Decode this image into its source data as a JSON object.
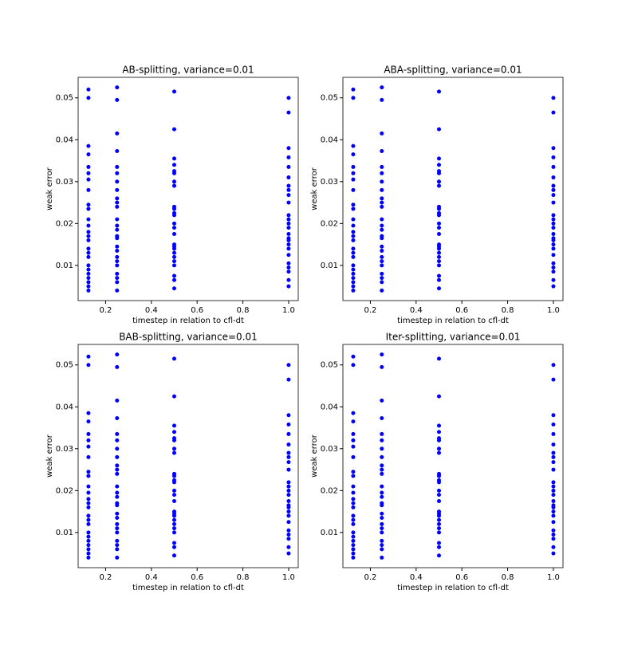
{
  "chart_data": [
    {
      "type": "scatter",
      "title": "AB-splitting, variance=0.01",
      "xlabel": "timestep in relation to cfl-dt",
      "ylabel": "weak error",
      "color": "#0000ff",
      "x": [
        0.125,
        0.125,
        0.125,
        0.125,
        0.125,
        0.125,
        0.125,
        0.125,
        0.125,
        0.125,
        0.125,
        0.125,
        0.125,
        0.125,
        0.125,
        0.125,
        0.125,
        0.125,
        0.125,
        0.125,
        0.125,
        0.125,
        0.125,
        0.125,
        0.125,
        0.25,
        0.25,
        0.25,
        0.25,
        0.25,
        0.25,
        0.25,
        0.25,
        0.25,
        0.25,
        0.25,
        0.25,
        0.25,
        0.25,
        0.25,
        0.25,
        0.25,
        0.25,
        0.25,
        0.25,
        0.25,
        0.25,
        0.25,
        0.25,
        0.25,
        0.5,
        0.5,
        0.5,
        0.5,
        0.5,
        0.5,
        0.5,
        0.5,
        0.5,
        0.5,
        0.5,
        0.5,
        0.5,
        0.5,
        0.5,
        0.5,
        0.5,
        0.5,
        0.5,
        0.5,
        0.5,
        0.5,
        0.5,
        0.5,
        0.5,
        1,
        1,
        1,
        1,
        1,
        1,
        1,
        1,
        1,
        1,
        1,
        1,
        1,
        1,
        1,
        1,
        1,
        1,
        1,
        1,
        1,
        1,
        1,
        1,
        1
      ],
      "y": [
        0.052,
        0.05,
        0.0385,
        0.0365,
        0.0335,
        0.032,
        0.0305,
        0.028,
        0.0245,
        0.0235,
        0.021,
        0.0195,
        0.018,
        0.017,
        0.016,
        0.014,
        0.013,
        0.012,
        0.01,
        0.009,
        0.008,
        0.007,
        0.006,
        0.005,
        0.004,
        0.0525,
        0.0495,
        0.0415,
        0.0373,
        0.0335,
        0.032,
        0.03,
        0.028,
        0.026,
        0.025,
        0.024,
        0.021,
        0.0195,
        0.0185,
        0.017,
        0.0165,
        0.0145,
        0.0135,
        0.012,
        0.011,
        0.01,
        0.008,
        0.007,
        0.006,
        0.004,
        0.0515,
        0.0425,
        0.0355,
        0.034,
        0.0325,
        0.032,
        0.03,
        0.029,
        0.024,
        0.0235,
        0.0225,
        0.022,
        0.02,
        0.019,
        0.0175,
        0.015,
        0.0145,
        0.014,
        0.013,
        0.012,
        0.011,
        0.01,
        0.0075,
        0.0065,
        0.0045,
        0.05,
        0.0465,
        0.038,
        0.0358,
        0.0335,
        0.031,
        0.029,
        0.028,
        0.0268,
        0.025,
        0.022,
        0.021,
        0.02,
        0.019,
        0.0175,
        0.0165,
        0.016,
        0.015,
        0.014,
        0.0125,
        0.0105,
        0.0095,
        0.0085,
        0.0065,
        0.005
      ],
      "xlim": [
        0.08,
        1.042
      ],
      "ylim": [
        0.0016,
        0.0549
      ],
      "xticks": [
        0.2,
        0.4,
        0.6,
        0.8,
        {
          "value": 1,
          "label": "1.0"
        }
      ],
      "yticks": [
        0.01,
        0.02,
        0.03,
        0.04,
        0.05
      ]
    },
    {
      "type": "scatter",
      "title": "ABA-splitting, variance=0.01",
      "xlabel": "timestep in relation to cfl-dt",
      "ylabel": "weak error",
      "color": "#0000ff",
      "x": [
        0.125,
        0.125,
        0.125,
        0.125,
        0.125,
        0.125,
        0.125,
        0.125,
        0.125,
        0.125,
        0.125,
        0.125,
        0.125,
        0.125,
        0.125,
        0.125,
        0.125,
        0.125,
        0.125,
        0.125,
        0.125,
        0.125,
        0.125,
        0.125,
        0.125,
        0.25,
        0.25,
        0.25,
        0.25,
        0.25,
        0.25,
        0.25,
        0.25,
        0.25,
        0.25,
        0.25,
        0.25,
        0.25,
        0.25,
        0.25,
        0.25,
        0.25,
        0.25,
        0.25,
        0.25,
        0.25,
        0.25,
        0.25,
        0.25,
        0.25,
        0.5,
        0.5,
        0.5,
        0.5,
        0.5,
        0.5,
        0.5,
        0.5,
        0.5,
        0.5,
        0.5,
        0.5,
        0.5,
        0.5,
        0.5,
        0.5,
        0.5,
        0.5,
        0.5,
        0.5,
        0.5,
        0.5,
        0.5,
        0.5,
        0.5,
        1,
        1,
        1,
        1,
        1,
        1,
        1,
        1,
        1,
        1,
        1,
        1,
        1,
        1,
        1,
        1,
        1,
        1,
        1,
        1,
        1,
        1,
        1,
        1,
        1
      ],
      "y": [
        0.052,
        0.05,
        0.0385,
        0.0365,
        0.0335,
        0.032,
        0.0305,
        0.028,
        0.0245,
        0.0235,
        0.021,
        0.0195,
        0.018,
        0.017,
        0.016,
        0.014,
        0.013,
        0.012,
        0.01,
        0.009,
        0.008,
        0.007,
        0.006,
        0.005,
        0.004,
        0.0525,
        0.0495,
        0.0415,
        0.0373,
        0.0335,
        0.032,
        0.03,
        0.028,
        0.026,
        0.025,
        0.024,
        0.021,
        0.0195,
        0.0185,
        0.017,
        0.0165,
        0.0145,
        0.0135,
        0.012,
        0.011,
        0.01,
        0.008,
        0.007,
        0.006,
        0.004,
        0.0515,
        0.0425,
        0.0355,
        0.034,
        0.0325,
        0.032,
        0.03,
        0.029,
        0.024,
        0.0235,
        0.0225,
        0.022,
        0.02,
        0.019,
        0.0175,
        0.015,
        0.0145,
        0.014,
        0.013,
        0.012,
        0.011,
        0.01,
        0.0075,
        0.0065,
        0.0045,
        0.05,
        0.0465,
        0.038,
        0.0358,
        0.0335,
        0.031,
        0.029,
        0.028,
        0.0268,
        0.025,
        0.022,
        0.021,
        0.02,
        0.019,
        0.0175,
        0.0165,
        0.016,
        0.015,
        0.014,
        0.0125,
        0.0105,
        0.0095,
        0.0085,
        0.0065,
        0.005
      ],
      "xlim": [
        0.08,
        1.042
      ],
      "ylim": [
        0.0016,
        0.0549
      ],
      "xticks": [
        0.2,
        0.4,
        0.6,
        0.8,
        {
          "value": 1,
          "label": "1.0"
        }
      ],
      "yticks": [
        0.01,
        0.02,
        0.03,
        0.04,
        0.05
      ]
    },
    {
      "type": "scatter",
      "title": "BAB-splitting, variance=0.01",
      "xlabel": "timestep in relation to cfl-dt",
      "ylabel": "weak error",
      "color": "#0000ff",
      "x": [
        0.125,
        0.125,
        0.125,
        0.125,
        0.125,
        0.125,
        0.125,
        0.125,
        0.125,
        0.125,
        0.125,
        0.125,
        0.125,
        0.125,
        0.125,
        0.125,
        0.125,
        0.125,
        0.125,
        0.125,
        0.125,
        0.125,
        0.125,
        0.125,
        0.125,
        0.25,
        0.25,
        0.25,
        0.25,
        0.25,
        0.25,
        0.25,
        0.25,
        0.25,
        0.25,
        0.25,
        0.25,
        0.25,
        0.25,
        0.25,
        0.25,
        0.25,
        0.25,
        0.25,
        0.25,
        0.25,
        0.25,
        0.25,
        0.25,
        0.25,
        0.5,
        0.5,
        0.5,
        0.5,
        0.5,
        0.5,
        0.5,
        0.5,
        0.5,
        0.5,
        0.5,
        0.5,
        0.5,
        0.5,
        0.5,
        0.5,
        0.5,
        0.5,
        0.5,
        0.5,
        0.5,
        0.5,
        0.5,
        0.5,
        0.5,
        1,
        1,
        1,
        1,
        1,
        1,
        1,
        1,
        1,
        1,
        1,
        1,
        1,
        1,
        1,
        1,
        1,
        1,
        1,
        1,
        1,
        1,
        1,
        1,
        1
      ],
      "y": [
        0.052,
        0.05,
        0.0385,
        0.0365,
        0.0335,
        0.032,
        0.0305,
        0.028,
        0.0245,
        0.0235,
        0.021,
        0.0195,
        0.018,
        0.017,
        0.016,
        0.014,
        0.013,
        0.012,
        0.01,
        0.009,
        0.008,
        0.007,
        0.006,
        0.005,
        0.004,
        0.0525,
        0.0495,
        0.0415,
        0.0373,
        0.0335,
        0.032,
        0.03,
        0.028,
        0.026,
        0.025,
        0.024,
        0.021,
        0.0195,
        0.0185,
        0.017,
        0.0165,
        0.0145,
        0.0135,
        0.012,
        0.011,
        0.01,
        0.008,
        0.007,
        0.006,
        0.004,
        0.0515,
        0.0425,
        0.0355,
        0.034,
        0.0325,
        0.032,
        0.03,
        0.029,
        0.024,
        0.0235,
        0.0225,
        0.022,
        0.02,
        0.019,
        0.0175,
        0.015,
        0.0145,
        0.014,
        0.013,
        0.012,
        0.011,
        0.01,
        0.0075,
        0.0065,
        0.0045,
        0.05,
        0.0465,
        0.038,
        0.0358,
        0.0335,
        0.031,
        0.029,
        0.028,
        0.0268,
        0.025,
        0.022,
        0.021,
        0.02,
        0.019,
        0.0175,
        0.0165,
        0.016,
        0.015,
        0.014,
        0.0125,
        0.0105,
        0.0095,
        0.0085,
        0.0065,
        0.005
      ],
      "xlim": [
        0.08,
        1.042
      ],
      "ylim": [
        0.0016,
        0.0549
      ],
      "xticks": [
        0.2,
        0.4,
        0.6,
        0.8,
        {
          "value": 1,
          "label": "1.0"
        }
      ],
      "yticks": [
        0.01,
        0.02,
        0.03,
        0.04,
        0.05
      ]
    },
    {
      "type": "scatter",
      "title": "Iter-splitting, variance=0.01",
      "xlabel": "timestep in relation to cfl-dt",
      "ylabel": "weak error",
      "color": "#0000ff",
      "x": [
        0.125,
        0.125,
        0.125,
        0.125,
        0.125,
        0.125,
        0.125,
        0.125,
        0.125,
        0.125,
        0.125,
        0.125,
        0.125,
        0.125,
        0.125,
        0.125,
        0.125,
        0.125,
        0.125,
        0.125,
        0.125,
        0.125,
        0.125,
        0.125,
        0.125,
        0.25,
        0.25,
        0.25,
        0.25,
        0.25,
        0.25,
        0.25,
        0.25,
        0.25,
        0.25,
        0.25,
        0.25,
        0.25,
        0.25,
        0.25,
        0.25,
        0.25,
        0.25,
        0.25,
        0.25,
        0.25,
        0.25,
        0.25,
        0.25,
        0.25,
        0.5,
        0.5,
        0.5,
        0.5,
        0.5,
        0.5,
        0.5,
        0.5,
        0.5,
        0.5,
        0.5,
        0.5,
        0.5,
        0.5,
        0.5,
        0.5,
        0.5,
        0.5,
        0.5,
        0.5,
        0.5,
        0.5,
        0.5,
        0.5,
        0.5,
        1,
        1,
        1,
        1,
        1,
        1,
        1,
        1,
        1,
        1,
        1,
        1,
        1,
        1,
        1,
        1,
        1,
        1,
        1,
        1,
        1,
        1,
        1,
        1,
        1
      ],
      "y": [
        0.052,
        0.05,
        0.0385,
        0.0365,
        0.0335,
        0.032,
        0.0305,
        0.028,
        0.0245,
        0.0235,
        0.021,
        0.0195,
        0.018,
        0.017,
        0.016,
        0.014,
        0.013,
        0.012,
        0.01,
        0.009,
        0.008,
        0.007,
        0.006,
        0.005,
        0.004,
        0.0525,
        0.0495,
        0.0415,
        0.0373,
        0.0335,
        0.032,
        0.03,
        0.028,
        0.026,
        0.025,
        0.024,
        0.021,
        0.0195,
        0.0185,
        0.017,
        0.0165,
        0.0145,
        0.0135,
        0.012,
        0.011,
        0.01,
        0.008,
        0.007,
        0.006,
        0.004,
        0.0515,
        0.0425,
        0.0355,
        0.034,
        0.0325,
        0.032,
        0.03,
        0.029,
        0.024,
        0.0235,
        0.0225,
        0.022,
        0.02,
        0.019,
        0.0175,
        0.015,
        0.0145,
        0.014,
        0.013,
        0.012,
        0.011,
        0.01,
        0.0075,
        0.0065,
        0.0045,
        0.05,
        0.0465,
        0.038,
        0.0358,
        0.0335,
        0.031,
        0.029,
        0.028,
        0.0268,
        0.025,
        0.022,
        0.021,
        0.02,
        0.019,
        0.0175,
        0.0165,
        0.016,
        0.015,
        0.014,
        0.0125,
        0.0105,
        0.0095,
        0.0085,
        0.0065,
        0.005
      ],
      "xlim": [
        0.08,
        1.042
      ],
      "ylim": [
        0.0016,
        0.0549
      ],
      "xticks": [
        0.2,
        0.4,
        0.6,
        0.8,
        {
          "value": 1,
          "label": "1.0"
        }
      ],
      "yticks": [
        0.01,
        0.02,
        0.03,
        0.04,
        0.05
      ]
    }
  ]
}
